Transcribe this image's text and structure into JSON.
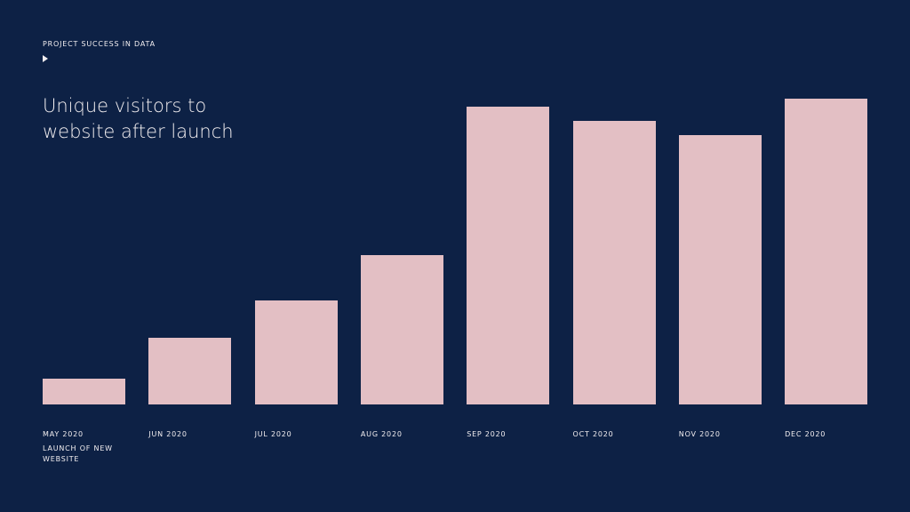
{
  "chart_data": {
    "type": "bar",
    "kicker": "PROJECT SUCCESS IN DATA",
    "title": "Unique visitors to website after launch",
    "categories": [
      "MAY 2020",
      "JUN 2020",
      "JUL 2020",
      "AUG 2020",
      "SEP 2020",
      "OCT 2020",
      "NOV 2020",
      "DEC 2020"
    ],
    "values": [
      29,
      75,
      117,
      168,
      335,
      319,
      303,
      344
    ],
    "color": "#e3bfc4",
    "annotation": "LAUNCH OF NEW WEBSITE"
  }
}
